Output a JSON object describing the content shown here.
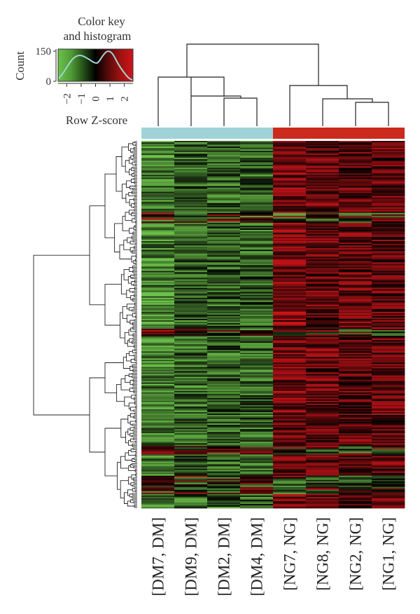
{
  "chart_data": {
    "type": "heatmap",
    "color_key": {
      "title_line1": "Color key",
      "title_line2": "and histogram",
      "ylabel": "Count",
      "xlabel": "Row Z-score",
      "y_ticks": [
        "150",
        "0"
      ],
      "x_ticks": [
        "−2",
        "−1",
        "0",
        "1",
        "2"
      ],
      "range": [
        -2.6,
        2.6
      ],
      "colors": {
        "low": "#6cc24a",
        "mid": "#000000",
        "high": "#d0141a"
      }
    },
    "groups": [
      {
        "label": "DM",
        "color": "#9fd3d6",
        "columns": 4
      },
      {
        "label": "NG",
        "color": "#cc2a1c",
        "columns": 4
      }
    ],
    "columns": [
      "[DM7, DM]",
      "[DM9, DM]",
      "[DM2, DM]",
      "[DM4, DM]",
      "[NG7, NG]",
      "[NG8, NG]",
      "[NG2, NG]",
      "[NG1, NG]"
    ],
    "row_count": 260,
    "legend_position": "top-left",
    "grid": false
  }
}
